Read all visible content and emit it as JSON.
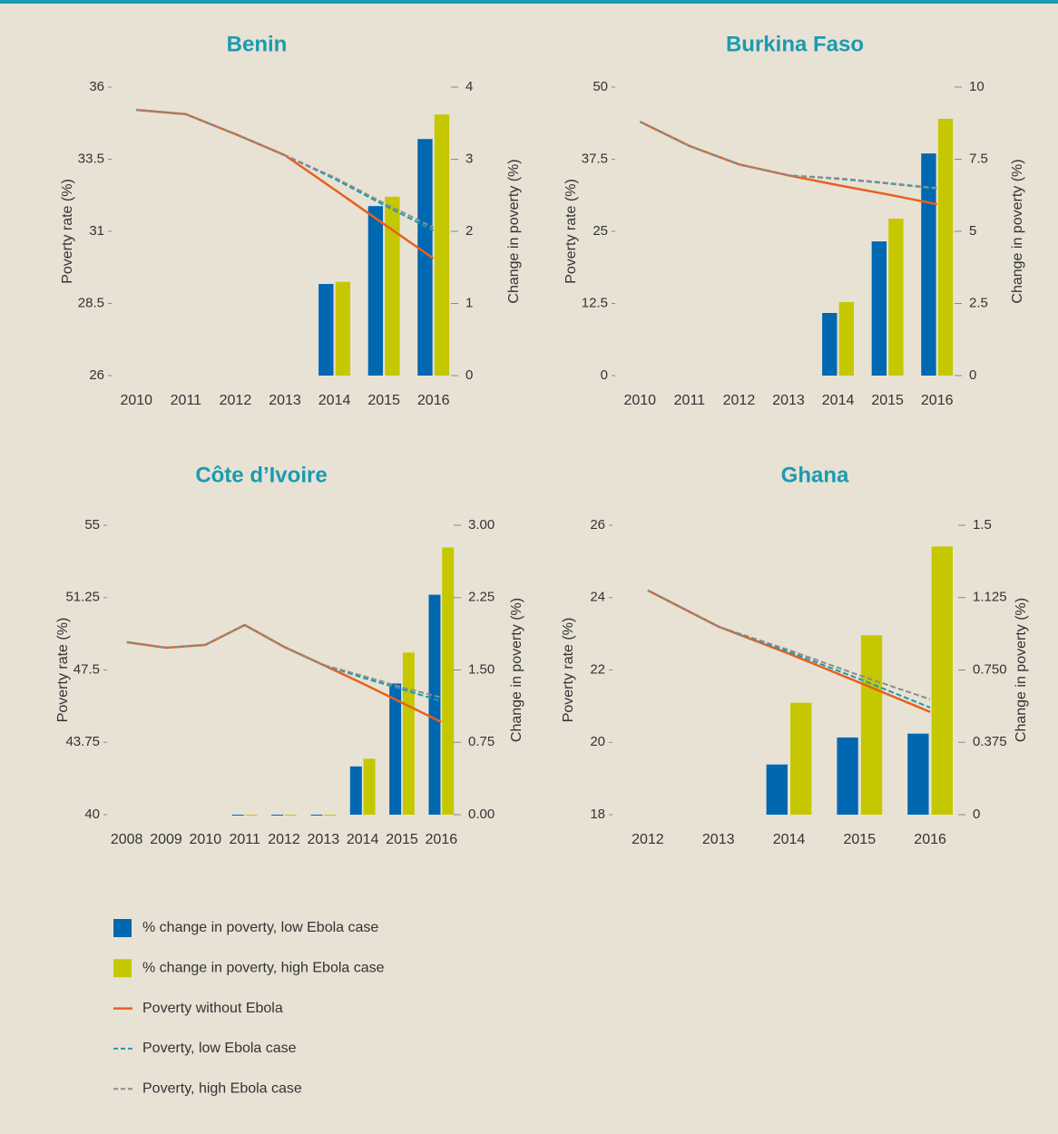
{
  "chart_data": [
    {
      "type": "bar_line",
      "title": "Benin",
      "y_label": "Poverty rate (%)",
      "y2_label": "Change in poverty (%)",
      "categories": [
        "2010",
        "2011",
        "2012",
        "2013",
        "2014",
        "2015",
        "2016"
      ],
      "ylim": [
        26,
        36
      ],
      "yticks": [
        26,
        28.5,
        31,
        33.5,
        36
      ],
      "y2lim": [
        0,
        4
      ],
      "y2ticks": [
        0,
        1,
        2,
        3,
        4
      ],
      "series": [
        {
          "axis": "y2",
          "values": [
            null,
            null,
            null,
            null,
            1.27,
            2.35,
            3.28
          ]
        },
        {
          "axis": "y2",
          "values": [
            null,
            null,
            null,
            null,
            1.3,
            2.48,
            3.62
          ]
        },
        {
          "axis": "y",
          "values": [
            35.21,
            35.06,
            34.37,
            33.64,
            32.45,
            31.25,
            30.06
          ]
        },
        {
          "axis": "y",
          "values": [
            35.21,
            35.06,
            34.37,
            33.64,
            32.82,
            31.91,
            31.03
          ]
        },
        {
          "axis": "y",
          "values": [
            35.21,
            35.06,
            34.37,
            33.64,
            32.87,
            31.98,
            31.13
          ]
        }
      ]
    },
    {
      "type": "bar_line",
      "title": "Burkina Faso",
      "y_label": "Poverty rate (%)",
      "y2_label": "Change in poverty (%)",
      "categories": [
        "2010",
        "2011",
        "2012",
        "2013",
        "2014",
        "2015",
        "2016"
      ],
      "ylim": [
        0,
        50
      ],
      "yticks": [
        0,
        12.5,
        25,
        37.5,
        50
      ],
      "y2lim": [
        0,
        10
      ],
      "y2ticks": [
        0,
        2.5,
        5,
        7.5,
        10
      ],
      "series": [
        {
          "axis": "y2",
          "values": [
            null,
            null,
            null,
            null,
            2.17,
            4.65,
            7.7
          ]
        },
        {
          "axis": "y2",
          "values": [
            null,
            null,
            null,
            null,
            2.55,
            5.44,
            8.9
          ]
        },
        {
          "axis": "y",
          "values": [
            44.0,
            39.8,
            36.6,
            34.7,
            33.0,
            31.4,
            29.7
          ]
        },
        {
          "axis": "y",
          "values": [
            44.0,
            39.8,
            36.6,
            34.7,
            34.1,
            33.3,
            32.4
          ]
        },
        {
          "axis": "y",
          "values": [
            44.0,
            39.8,
            36.6,
            34.7,
            34.2,
            33.4,
            32.5
          ]
        }
      ]
    },
    {
      "type": "bar_line",
      "title": "Côte d’Ivoire",
      "y_label": "Poverty rate (%)",
      "y2_label": "Change in poverty (%)",
      "categories": [
        "2008",
        "2009",
        "2010",
        "2011",
        "2012",
        "2013",
        "2014",
        "2015",
        "2016"
      ],
      "ylim": [
        40,
        55
      ],
      "yticks": [
        40,
        43.75,
        47.5,
        51.25,
        55
      ],
      "y2lim": [
        0,
        3
      ],
      "y2ticks": [
        {
          "value": 0,
          "label": "0.00"
        },
        {
          "value": 0.75,
          "label": "0.75"
        },
        {
          "value": 1.5,
          "label": "1.50"
        },
        {
          "value": 2.25,
          "label": "2.25"
        },
        {
          "value": 3,
          "label": "3.00"
        }
      ],
      "series": [
        {
          "axis": "y2",
          "values": [
            null,
            null,
            null,
            0,
            0,
            0,
            0.5,
            1.36,
            2.28
          ]
        },
        {
          "axis": "y2",
          "values": [
            null,
            null,
            null,
            0,
            0,
            0,
            0.58,
            1.68,
            2.77
          ]
        },
        {
          "axis": "y",
          "values": [
            48.94,
            48.65,
            48.8,
            49.83,
            48.7,
            47.76,
            46.8,
            45.8,
            44.8
          ]
        },
        {
          "axis": "y",
          "values": [
            48.94,
            48.65,
            48.8,
            49.83,
            48.7,
            47.76,
            47.1,
            46.5,
            45.88
          ]
        },
        {
          "axis": "y",
          "values": [
            48.94,
            48.65,
            48.8,
            49.83,
            48.7,
            47.76,
            47.2,
            46.6,
            46.07
          ]
        }
      ]
    },
    {
      "type": "bar_line",
      "title": "Ghana",
      "y_label": "Poverty rate (%)",
      "y2_label": "Change in poverty (%)",
      "categories": [
        "2012",
        "2013",
        "2014",
        "2015",
        "2016"
      ],
      "ylim": [
        18,
        26
      ],
      "yticks": [
        18,
        20,
        22,
        24,
        26
      ],
      "y2lim": [
        0,
        1.5
      ],
      "y2ticks": [
        0,
        0.375,
        {
          "value": 0.75,
          "label": "0.750"
        },
        1.125,
        1.5
      ],
      "series": [
        {
          "axis": "y2",
          "values": [
            null,
            null,
            0.26,
            0.4,
            0.42
          ]
        },
        {
          "axis": "y2",
          "values": [
            null,
            null,
            0.58,
            0.93,
            1.39
          ]
        },
        {
          "axis": "y",
          "values": [
            24.2,
            23.2,
            22.45,
            21.65,
            20.84
          ]
        },
        {
          "axis": "y",
          "values": [
            24.2,
            23.2,
            22.5,
            21.75,
            20.96
          ]
        },
        {
          "axis": "y",
          "values": [
            24.2,
            23.2,
            22.55,
            21.85,
            21.19
          ]
        }
      ]
    }
  ],
  "legend": [
    {
      "name": "% change in poverty, low Ebola case",
      "color": "#0067b1",
      "style": "bar"
    },
    {
      "name": "% change in poverty, high Ebola case",
      "color": "#c5c800",
      "style": "bar"
    },
    {
      "name": "Poverty without Ebola",
      "color": "#e8601c",
      "style": "solid"
    },
    {
      "name": "Poverty, low Ebola case",
      "color": "#1a9bb0",
      "style": "dashed"
    },
    {
      "name": "Poverty, high Ebola case",
      "color": "#8c8c8c",
      "style": "dashed"
    }
  ]
}
